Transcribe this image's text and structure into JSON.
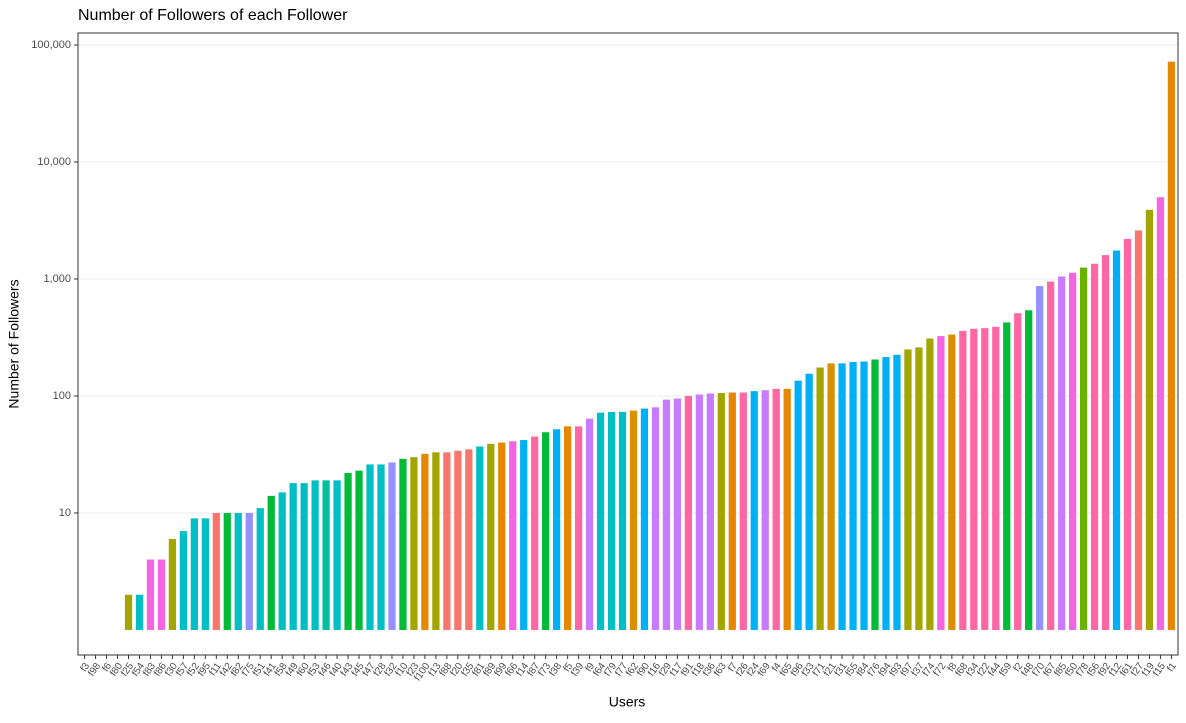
{
  "chart_data": {
    "type": "bar",
    "title": "Number of Followers of each Follower",
    "x_label": "Users",
    "y_label": "Number of Followers",
    "log_y": true,
    "grid": true,
    "categories": [
      "f3",
      "f98",
      "f6",
      "f80",
      "f25",
      "f54",
      "f83",
      "f86",
      "f30",
      "f57",
      "f52",
      "f95",
      "f11",
      "f42",
      "f82",
      "f75",
      "f51",
      "f41",
      "f58",
      "f49",
      "f60",
      "f53",
      "f46",
      "f40",
      "f43",
      "f45",
      "f47",
      "f28",
      "f32",
      "f10",
      "f23",
      "f100",
      "f13",
      "f88",
      "f20",
      "f35",
      "f81",
      "f89",
      "f99",
      "f66",
      "f14",
      "f87",
      "f73",
      "f38",
      "f5",
      "f39",
      "f9",
      "f64",
      "f79",
      "f77",
      "f62",
      "f90",
      "f16",
      "f29",
      "f17",
      "f91",
      "f18",
      "f36",
      "f63",
      "f7",
      "f26",
      "f24",
      "f69",
      "f4",
      "f65",
      "f96",
      "f33",
      "f71",
      "f21",
      "f31",
      "f55",
      "f84",
      "f76",
      "f94",
      "f93",
      "f97",
      "f37",
      "f74",
      "f72",
      "f8",
      "f68",
      "f34",
      "f22",
      "f44",
      "f59",
      "f2",
      "f48",
      "f70",
      "f67",
      "f85",
      "f50",
      "f78",
      "f56",
      "f92",
      "f12",
      "f61",
      "f27",
      "f19",
      "f15",
      "f1"
    ],
    "values": [
      1,
      1,
      1,
      1,
      2,
      2,
      4,
      4,
      6,
      7,
      9,
      9,
      10,
      10,
      10,
      10,
      11,
      14,
      15,
      18,
      18,
      19,
      19,
      19,
      22,
      23,
      26,
      26,
      27,
      29,
      30,
      32,
      33,
      33,
      34,
      35,
      37,
      39,
      40,
      41,
      42,
      45,
      49,
      52,
      55,
      55,
      64,
      72,
      73,
      73,
      75,
      78,
      80,
      93,
      95,
      100,
      103,
      105,
      106,
      107,
      107,
      110,
      112,
      115,
      115,
      135,
      155,
      175,
      190,
      190,
      195,
      197,
      205,
      215,
      225,
      250,
      260,
      310,
      325,
      335,
      360,
      375,
      380,
      390,
      425,
      510,
      540,
      870,
      950,
      1050,
      1130,
      1250,
      1350,
      1600,
      1750,
      2200,
      2600,
      3900,
      5000,
      72000
    ],
    "colors": [
      "#F8766D",
      "#F8766D",
      "#F8766D",
      "#FF61C3",
      "#A3A500",
      "#00BFC4",
      "#F564E3",
      "#F564E3",
      "#A3A500",
      "#00BFC4",
      "#00BFC4",
      "#00BFC4",
      "#F8766D",
      "#00BA38",
      "#00BFC4",
      "#9590FF",
      "#00BFC4",
      "#00BA38",
      "#00BFC4",
      "#00BFC4",
      "#00BFC4",
      "#00BFC4",
      "#00C19F",
      "#00BFC4",
      "#00BA38",
      "#00BA38",
      "#00BFC4",
      "#00BFC4",
      "#9590FF",
      "#00BA38",
      "#A3A500",
      "#E58700",
      "#A3A500",
      "#F8766D",
      "#F8766D",
      "#F8766D",
      "#00BFC4",
      "#A3A500",
      "#E58700",
      "#F564E3",
      "#00B0F6",
      "#FF67A4",
      "#00BA38",
      "#00B0F6",
      "#E58700",
      "#FF67A4",
      "#C77CFF",
      "#00BFC4",
      "#00BFC4",
      "#00BFC4",
      "#D89000",
      "#00B0F6",
      "#C77CFF",
      "#C77CFF",
      "#C77CFF",
      "#FF67A4",
      "#C77CFF",
      "#C77CFF",
      "#A3A500",
      "#E58700",
      "#FF67A4",
      "#00B0F6",
      "#C77CFF",
      "#FF67A4",
      "#E58700",
      "#00B0F6",
      "#00B0F6",
      "#A3A500",
      "#D89000",
      "#00B0F6",
      "#00B0F6",
      "#00B0F6",
      "#00BA38",
      "#00B0F6",
      "#00B0F6",
      "#A3A500",
      "#A3A500",
      "#A3A500",
      "#F564E3",
      "#D89000",
      "#FF67A4",
      "#FF67A4",
      "#FF67A4",
      "#FF67A4",
      "#00BA38",
      "#FF67A4",
      "#00BA38",
      "#9590FF",
      "#FF67A4",
      "#C77CFF",
      "#F564E3",
      "#6BB100",
      "#FF67A4",
      "#FF67A4",
      "#00B0F6",
      "#FF67A4",
      "#F8766D",
      "#A3A500",
      "#F564E3",
      "#E58700"
    ],
    "ylim": [
      0.611,
      126600
    ],
    "yticks": [
      10,
      100,
      {
        "value": 1000,
        "label": "1,000"
      },
      {
        "value": 10000,
        "label": "10,000"
      },
      {
        "value": 100000,
        "label": "100,000"
      }
    ]
  }
}
